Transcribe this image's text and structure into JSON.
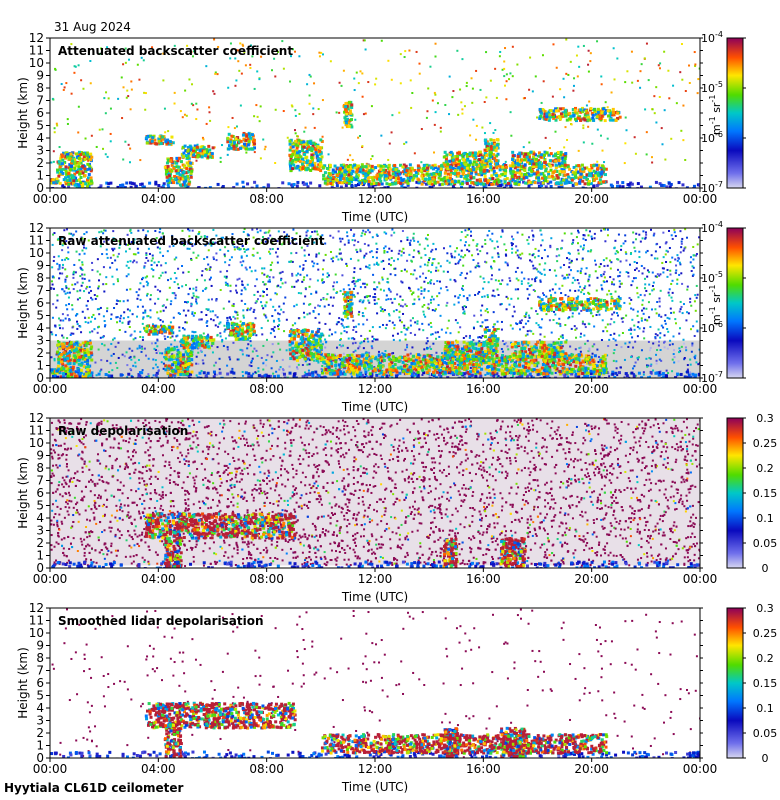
{
  "date_label": "31 Aug 2024",
  "site_label": "Hyytiala CL61D ceilometer",
  "chart_data": [
    {
      "type": "heatmap",
      "title": "Attenuated backscatter coefficient",
      "xlabel": "Time (UTC)",
      "ylabel": "Height (km)",
      "x_ticks": [
        "00:00",
        "04:00",
        "08:00",
        "12:00",
        "16:00",
        "20:00",
        "00:00"
      ],
      "xlim": [
        0,
        24
      ],
      "y_ticks": [
        0,
        1,
        2,
        3,
        4,
        5,
        6,
        7,
        8,
        9,
        10,
        11,
        12
      ],
      "ylim": [
        0,
        12
      ],
      "colorbar": {
        "scale": "log",
        "ticks": [
          "10-7",
          "10-6",
          "10-5",
          "10-4"
        ],
        "label_base": "m",
        "label_exp1": "-1",
        "label_mid": " sr",
        "label_exp2": "-1"
      },
      "noise": "low",
      "clouds": [
        [
          0,
          0.25,
          0.5,
          0.8
        ],
        [
          0.2,
          1.5,
          0.2,
          3.0
        ],
        [
          3.5,
          4.5,
          3.6,
          4.3
        ],
        [
          4.2,
          5.2,
          0.3,
          2.5
        ],
        [
          4.8,
          6.0,
          2.5,
          3.5
        ],
        [
          6.5,
          7.5,
          3.2,
          4.5
        ],
        [
          8.8,
          10.0,
          1.5,
          4.0
        ],
        [
          10.0,
          20.5,
          0.4,
          2.0
        ],
        [
          10.8,
          11.1,
          5.0,
          7.0
        ],
        [
          14.5,
          16.0,
          1.5,
          3.0
        ],
        [
          16.0,
          16.5,
          2.0,
          4.0
        ],
        [
          17.0,
          19.0,
          1.8,
          3.0
        ],
        [
          18.0,
          21.0,
          5.5,
          6.5
        ]
      ]
    },
    {
      "type": "heatmap",
      "title": "Raw attenuated backscatter coefficient",
      "xlabel": "Time (UTC)",
      "ylabel": "Height (km)",
      "x_ticks": [
        "00:00",
        "04:00",
        "08:00",
        "12:00",
        "16:00",
        "20:00",
        "00:00"
      ],
      "xlim": [
        0,
        24
      ],
      "y_ticks": [
        0,
        1,
        2,
        3,
        4,
        5,
        6,
        7,
        8,
        9,
        10,
        11,
        12
      ],
      "ylim": [
        0,
        12
      ],
      "colorbar": {
        "scale": "log",
        "ticks": [
          "10-7",
          "10-6",
          "10-5",
          "10-4"
        ],
        "label_base": "m",
        "label_exp1": "-1",
        "label_mid": " sr",
        "label_exp2": "-1"
      },
      "noise": "high",
      "clouds": [
        [
          0,
          0.25,
          0.5,
          0.8
        ],
        [
          0.2,
          1.5,
          0.2,
          3.0
        ],
        [
          3.5,
          4.5,
          3.6,
          4.3
        ],
        [
          4.2,
          5.2,
          0.3,
          2.5
        ],
        [
          4.8,
          6.0,
          2.5,
          3.5
        ],
        [
          6.5,
          7.5,
          3.2,
          4.5
        ],
        [
          8.8,
          10.0,
          1.5,
          4.0
        ],
        [
          10.0,
          20.5,
          0.4,
          2.0
        ],
        [
          10.8,
          11.1,
          5.0,
          7.0
        ],
        [
          14.5,
          16.0,
          1.5,
          3.0
        ],
        [
          16.0,
          16.5,
          2.0,
          4.0
        ],
        [
          17.0,
          19.0,
          1.8,
          3.0
        ],
        [
          18.0,
          21.0,
          5.5,
          6.5
        ]
      ]
    },
    {
      "type": "heatmap",
      "title": "Raw depolarisation",
      "xlabel": "Time (UTC)",
      "ylabel": "Height (km)",
      "x_ticks": [
        "00:00",
        "04:00",
        "08:00",
        "12:00",
        "16:00",
        "20:00",
        "00:00"
      ],
      "xlim": [
        0,
        24
      ],
      "y_ticks": [
        0,
        1,
        2,
        3,
        4,
        5,
        6,
        7,
        8,
        9,
        10,
        11,
        12
      ],
      "ylim": [
        0,
        12
      ],
      "colorbar": {
        "scale": "linear",
        "ticks": [
          "0",
          "0.05",
          "0.1",
          "0.15",
          "0.2",
          "0.25",
          "0.3"
        ]
      },
      "noise": "purple",
      "clouds": [
        [
          4.2,
          4.8,
          0.2,
          2.5
        ],
        [
          16.6,
          17.5,
          0.2,
          2.5
        ],
        [
          14.5,
          15.0,
          0.2,
          2.5
        ],
        [
          3.5,
          9.0,
          2.5,
          4.5
        ]
      ]
    },
    {
      "type": "heatmap",
      "title": "Smoothed lidar depolarisation",
      "xlabel": "Time (UTC)",
      "ylabel": "Height (km)",
      "x_ticks": [
        "00:00",
        "04:00",
        "08:00",
        "12:00",
        "16:00",
        "20:00",
        "00:00"
      ],
      "xlim": [
        0,
        24
      ],
      "y_ticks": [
        0,
        1,
        2,
        3,
        4,
        5,
        6,
        7,
        8,
        9,
        10,
        11,
        12
      ],
      "ylim": [
        0,
        12
      ],
      "colorbar": {
        "scale": "linear",
        "ticks": [
          "0",
          "0.05",
          "0.1",
          "0.15",
          "0.2",
          "0.25",
          "0.3"
        ]
      },
      "noise": "sparse",
      "clouds": [
        [
          4.2,
          4.8,
          0.2,
          2.5
        ],
        [
          16.6,
          17.5,
          0.2,
          2.5
        ],
        [
          14.5,
          15.0,
          0.2,
          2.5
        ],
        [
          3.5,
          9.0,
          2.5,
          4.5
        ],
        [
          10.0,
          20.5,
          0.5,
          2.0
        ]
      ]
    }
  ]
}
